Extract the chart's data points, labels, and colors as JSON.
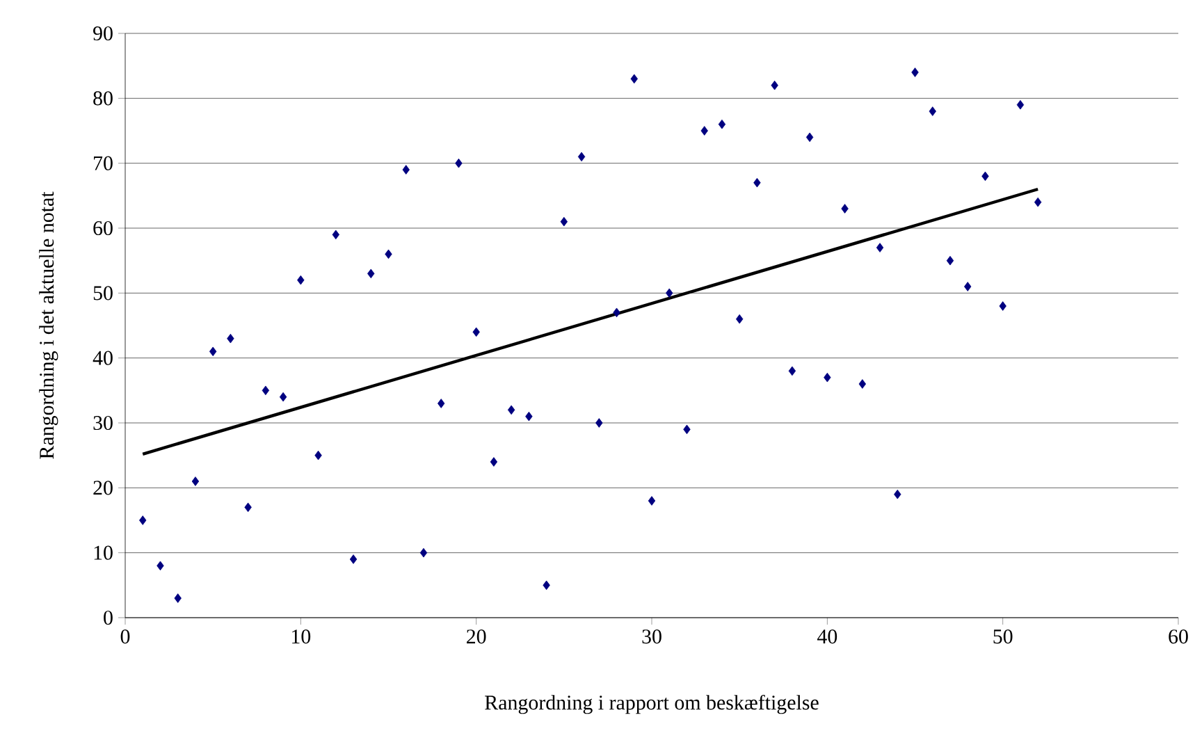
{
  "chart_data": {
    "type": "scatter",
    "xlabel": "Rangordning i rapport om beskæftigelse",
    "ylabel": "Rangordning i det aktuelle notat",
    "xlim": [
      0,
      60
    ],
    "xticks": [
      0,
      10,
      20,
      30,
      40,
      50,
      60
    ],
    "ylim": [
      0,
      90
    ],
    "yticks": [
      0,
      10,
      20,
      30,
      40,
      50,
      60,
      70,
      80,
      90
    ],
    "grid": "y",
    "series": [
      {
        "marker": "diamond",
        "color": "#000080",
        "x": [
          1,
          2,
          3,
          4,
          5,
          6,
          7,
          8,
          9,
          10,
          11,
          12,
          13,
          14,
          15,
          16,
          17,
          18,
          19,
          20,
          21,
          22,
          23,
          24,
          25,
          26,
          27,
          28,
          29,
          30,
          31,
          32,
          33,
          34,
          35,
          36,
          37,
          38,
          39,
          40,
          41,
          42,
          43,
          44,
          45,
          46,
          47,
          48,
          49,
          50,
          51,
          52
        ],
        "values": [
          15,
          8,
          3,
          21,
          41,
          43,
          17,
          35,
          34,
          52,
          25,
          59,
          9,
          53,
          56,
          69,
          10,
          33,
          70,
          44,
          24,
          32,
          31,
          5,
          61,
          71,
          30,
          47,
          83,
          18,
          50,
          29,
          75,
          76,
          46,
          67,
          82,
          38,
          74,
          37,
          63,
          36,
          57,
          19,
          84,
          78,
          55,
          51,
          68,
          48,
          79,
          64
        ]
      },
      {
        "type": "line",
        "marker": "none",
        "color": "#000000",
        "x": [
          1,
          52
        ],
        "values": [
          25.2,
          66.0
        ]
      }
    ]
  }
}
